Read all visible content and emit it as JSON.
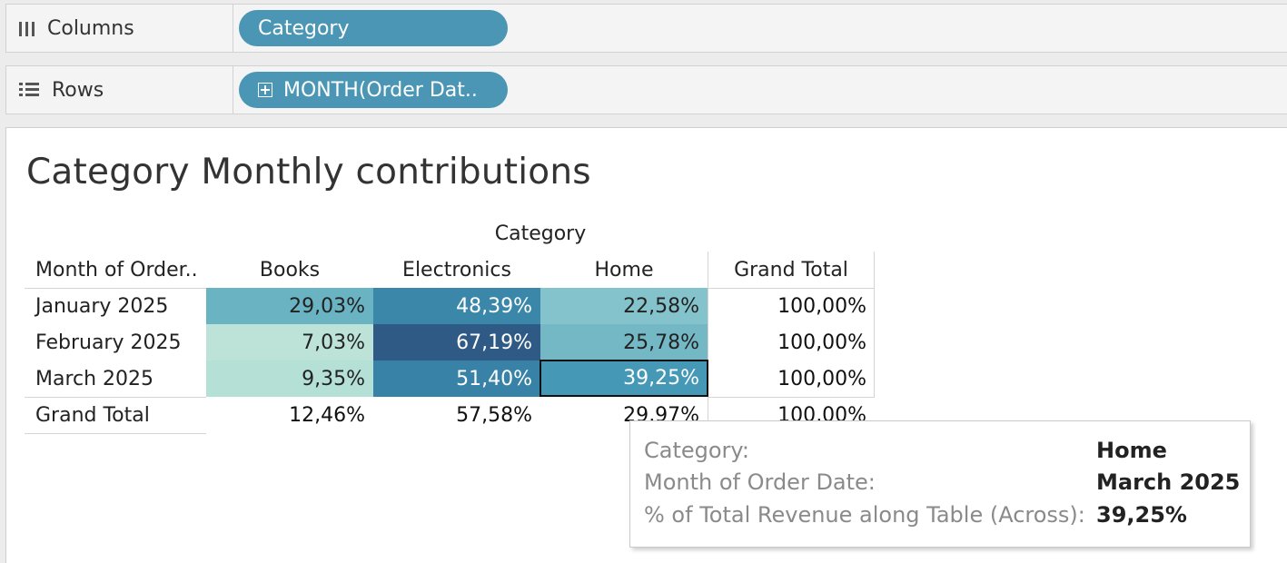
{
  "shelves": {
    "columns": {
      "label": "Columns",
      "pill": "Category",
      "icon": "columns-icon"
    },
    "rows": {
      "label": "Rows",
      "pill": "MONTH(Order Dat..",
      "icon": "rows-icon"
    }
  },
  "sheet": {
    "title": "Category Monthly contributions",
    "column_header_group": "Category",
    "row_header": "Month of Order..",
    "columns": [
      "Books",
      "Electronics",
      "Home"
    ],
    "grand_total_col": "Grand Total",
    "rows": [
      {
        "label": "January 2025",
        "values": [
          "29,03%",
          "48,39%",
          "22,58%"
        ],
        "total": "100,00%"
      },
      {
        "label": "February 2025",
        "values": [
          "7,03%",
          "67,19%",
          "25,78%"
        ],
        "total": "100,00%"
      },
      {
        "label": "March 2025",
        "values": [
          "9,35%",
          "51,40%",
          "39,25%"
        ],
        "total": "100,00%"
      }
    ],
    "grand_total_row": {
      "label": "Grand Total",
      "values": [
        "12,46%",
        "57,58%",
        "29,97%"
      ],
      "total": "100,00%"
    },
    "colors": {
      "r0": [
        "#6ab3c2",
        "#3a87aa",
        "#84c3cb"
      ],
      "r1": [
        "#bde3d8",
        "#2f5a86",
        "#74b8c6"
      ],
      "r2": [
        "#b4e0d5",
        "#3882a8",
        "#4599b7"
      ]
    },
    "selected_cell": "March 2025 / Home"
  },
  "tooltip": {
    "rows": [
      {
        "key": "Category:",
        "value": "Home"
      },
      {
        "key": "Month of Order Date:",
        "value": "March 2025"
      },
      {
        "key": "% of Total Revenue along Table (Across):",
        "value": "39,25%"
      }
    ]
  }
}
